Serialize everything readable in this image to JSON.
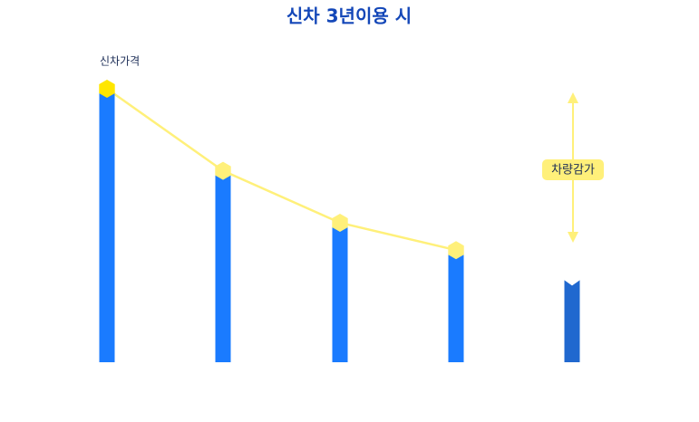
{
  "chart_data": {
    "type": "bar",
    "title": "신차 3년이용 시",
    "start_label": "신차가격",
    "annotation": "차량감가",
    "values": [
      100,
      70,
      51,
      41,
      30
    ],
    "colors": [
      "#1a7bff",
      "#1a7bff",
      "#1a7bff",
      "#1a7bff",
      "#2068cf"
    ],
    "marker_colors": [
      "#ffe600",
      "#fff07a",
      "#fff07a",
      "#fff07a"
    ],
    "line_color": "#fff07a",
    "ylim": [
      0,
      100
    ]
  }
}
